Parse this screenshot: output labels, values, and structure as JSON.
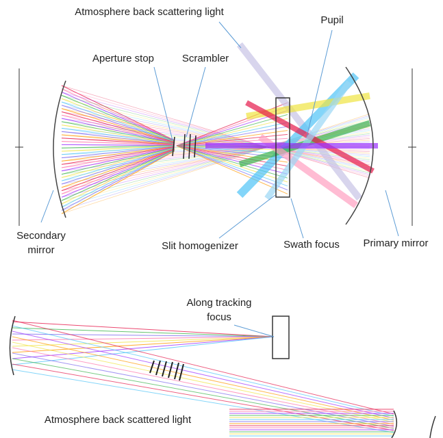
{
  "labels": {
    "atmosphere_scattering": "Atmosphere back scattering light",
    "pupil": "Pupil",
    "aperture_stop": "Aperture stop",
    "scrambler": "Scrambler",
    "secondary_mirror": [
      "Secondary",
      "mirror"
    ],
    "slit_homogenizer": "Slit homogenizer",
    "swath_focus": "Swath focus",
    "primary_mirror": "Primary mirror",
    "along_tracking_focus": [
      "Along tracking",
      "focus"
    ],
    "atmosphere_scattered": "Atmosphere back scattered light"
  }
}
